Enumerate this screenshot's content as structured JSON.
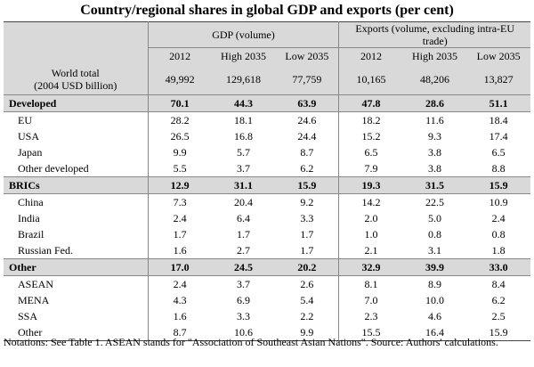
{
  "title": "Country/regional shares in global GDP and exports (per cent)",
  "header": {
    "groups": [
      "GDP (volume)",
      "Exports (volume, excluding intra-EU trade)"
    ],
    "columns": [
      "2012",
      "High 2035",
      "Low 2035",
      "2012",
      "High 2035",
      "Low 2035"
    ]
  },
  "world_total": {
    "label": "World total",
    "unit": "(2004 USD billion)",
    "values": [
      "49,992",
      "129,618",
      "77,759",
      "10,165",
      "48,206",
      "13,827"
    ]
  },
  "sections": [
    {
      "label": "Developed",
      "values": [
        "70.1",
        "44.3",
        "63.9",
        "47.8",
        "28.6",
        "51.1"
      ],
      "rows": [
        {
          "label": "EU",
          "values": [
            "28.2",
            "18.1",
            "24.6",
            "18.2",
            "11.6",
            "18.4"
          ]
        },
        {
          "label": "USA",
          "values": [
            "26.5",
            "16.8",
            "24.4",
            "15.2",
            "9.3",
            "17.4"
          ]
        },
        {
          "label": "Japan",
          "values": [
            "9.9",
            "5.7",
            "8.7",
            "6.5",
            "3.8",
            "6.5"
          ]
        },
        {
          "label": "Other developed",
          "values": [
            "5.5",
            "3.7",
            "6.2",
            "7.9",
            "3.8",
            "8.8"
          ]
        }
      ]
    },
    {
      "label": "BRICs",
      "values": [
        "12.9",
        "31.1",
        "15.9",
        "19.3",
        "31.5",
        "15.9"
      ],
      "rows": [
        {
          "label": "China",
          "values": [
            "7.3",
            "20.4",
            "9.2",
            "14.2",
            "22.5",
            "10.9"
          ]
        },
        {
          "label": "India",
          "values": [
            "2.4",
            "6.4",
            "3.3",
            "2.0",
            "5.0",
            "2.4"
          ]
        },
        {
          "label": "Brazil",
          "values": [
            "1.7",
            "1.7",
            "1.7",
            "1.0",
            "0.8",
            "0.8"
          ]
        },
        {
          "label": "Russian Fed.",
          "values": [
            "1.6",
            "2.7",
            "1.7",
            "2.1",
            "3.1",
            "1.8"
          ]
        }
      ]
    },
    {
      "label": "Other",
      "values": [
        "17.0",
        "24.5",
        "20.2",
        "32.9",
        "39.9",
        "33.0"
      ],
      "rows": [
        {
          "label": "ASEAN",
          "values": [
            "2.4",
            "3.7",
            "2.6",
            "8.1",
            "8.9",
            "8.4"
          ]
        },
        {
          "label": "MENA",
          "values": [
            "4.3",
            "6.9",
            "5.4",
            "7.0",
            "10.0",
            "6.2"
          ]
        },
        {
          "label": "SSA",
          "values": [
            "1.6",
            "3.3",
            "2.2",
            "2.3",
            "4.6",
            "2.5"
          ]
        },
        {
          "label": "Other",
          "values": [
            "8.7",
            "10.6",
            "9.9",
            "15.5",
            "16.4",
            "15.9"
          ]
        }
      ]
    }
  ],
  "note": "Notations: See Table 1. ASEAN stands for \"Association of Southeast Asian Nations\". Source: Authors' calculations."
}
